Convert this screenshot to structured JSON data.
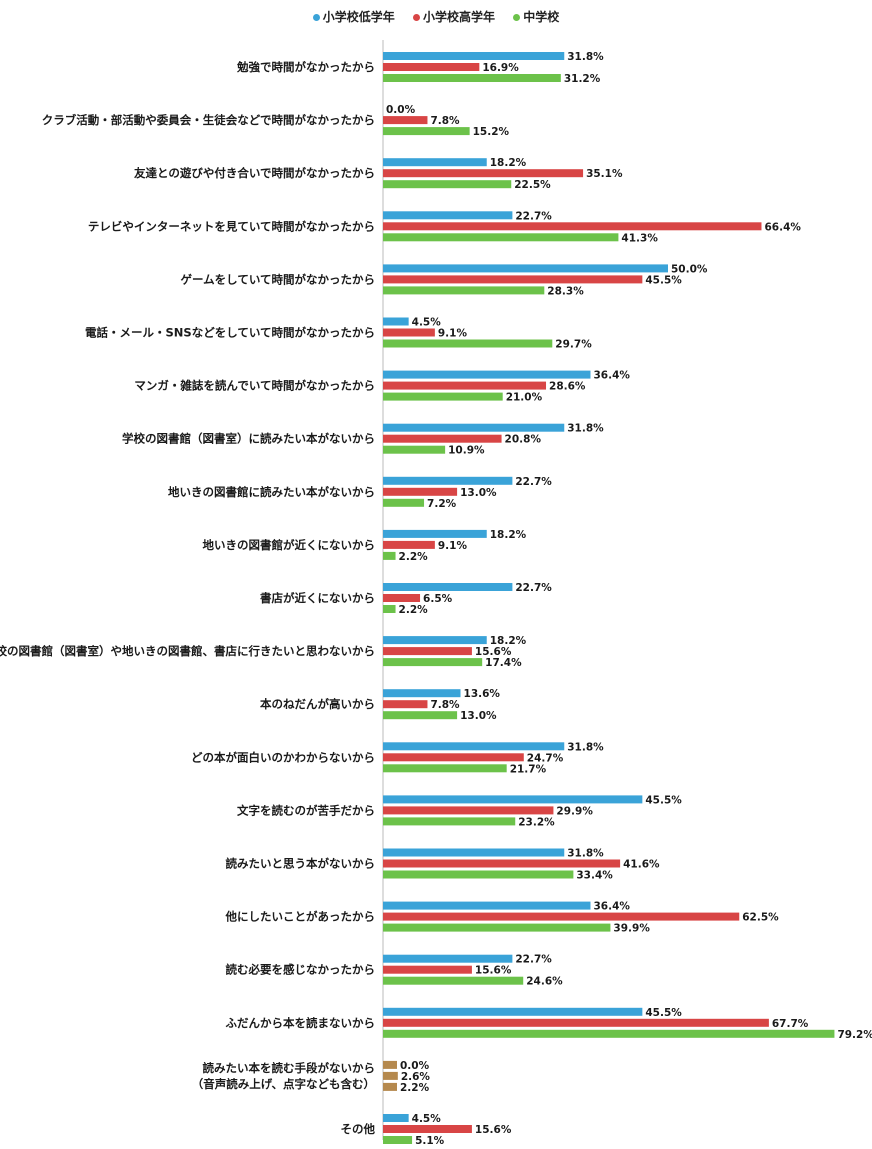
{
  "chart_data": {
    "type": "bar",
    "orientation": "horizontal",
    "legend_position": "top-center",
    "grid": false,
    "xlim": [
      0,
      80
    ],
    "series": [
      {
        "name": "小学校低学年",
        "color": "#3aa3d8",
        "values": [
          31.8,
          0.0,
          18.2,
          22.7,
          50.0,
          4.5,
          36.4,
          31.8,
          22.7,
          18.2,
          22.7,
          18.2,
          13.6,
          31.8,
          45.5,
          31.8,
          36.4,
          22.7,
          45.5,
          0.0,
          4.5
        ],
        "labels": [
          "31.8%",
          "0.0%",
          "18.2%",
          "22.7%",
          "50.0%",
          "4.5%",
          "36.4%",
          "31.8%",
          "22.7%",
          "18.2%",
          "22.7%",
          "18.2%",
          "13.6%",
          "31.8%",
          "45.5%",
          "31.8%",
          "36.4%",
          "22.7%",
          "45.5%",
          "0.0%",
          "4.5%"
        ]
      },
      {
        "name": "小学校高学年",
        "color": "#d84545",
        "values": [
          16.9,
          7.8,
          35.1,
          66.4,
          45.5,
          9.1,
          28.6,
          20.8,
          13.0,
          9.1,
          6.5,
          15.6,
          7.8,
          24.7,
          29.9,
          41.6,
          62.5,
          15.6,
          67.7,
          2.6,
          15.6
        ],
        "labels": [
          "16.9%",
          "7.8%",
          "35.1%",
          "66.4%",
          "45.5%",
          "9.1%",
          "28.6%",
          "20.8%",
          "13.0%",
          "9.1%",
          "6.5%",
          "15.6%",
          "7.8%",
          "24.7%",
          "29.9%",
          "41.6%",
          "62.5%",
          "15.6%",
          "67.7%",
          "2.6%",
          "15.6%"
        ]
      },
      {
        "name": "中学校",
        "color": "#6cc24a",
        "values": [
          31.2,
          15.2,
          22.5,
          41.3,
          28.3,
          29.7,
          21.0,
          10.9,
          7.2,
          2.2,
          2.2,
          17.4,
          13.0,
          21.7,
          23.2,
          33.4,
          39.9,
          24.6,
          79.2,
          2.2,
          5.1
        ],
        "labels": [
          "31.2%",
          "15.2%",
          "22.5%",
          "41.3%",
          "28.3%",
          "29.7%",
          "21.0%",
          "10.9%",
          "7.2%",
          "2.2%",
          "2.2%",
          "17.4%",
          "13.0%",
          "21.7%",
          "23.2%",
          "33.4%",
          "39.9%",
          "24.6%",
          "79.2%",
          "2.2%",
          "5.1%"
        ]
      }
    ],
    "special_color": "#b5894e",
    "special_category_index": 19,
    "categories": [
      [
        "勉強で時間がなかったから"
      ],
      [
        "クラブ活動・部活動や委員会・生徒会などで時間がなかったから"
      ],
      [
        "友達との遊びや付き合いで時間がなかったから"
      ],
      [
        "テレビやインターネットを見ていて時間がなかったから"
      ],
      [
        "ゲームをしていて時間がなかったから"
      ],
      [
        "電話・メール・SNSなどをしていて時間がなかったから"
      ],
      [
        "マンガ・雑誌を読んでいて時間がなかったから"
      ],
      [
        "学校の図書館（図書室）に読みたい本がないから"
      ],
      [
        "地いきの図書館に読みたい本がないから"
      ],
      [
        "地いきの図書館が近くにないから"
      ],
      [
        "書店が近くにないから"
      ],
      [
        "学校の図書館（図書室）や地いきの図書館、書店に行きたいと思わないから"
      ],
      [
        "本のねだんが高いから"
      ],
      [
        "どの本が面白いのかわからないから"
      ],
      [
        "文字を読むのが苦手だから"
      ],
      [
        "読みたいと思う本がないから"
      ],
      [
        "他にしたいことがあったから"
      ],
      [
        "読む必要を感じなかったから"
      ],
      [
        "ふだんから本を読まないから"
      ],
      [
        "読みたい本を読む手段がないから",
        "（音声読み上げ、点字なども含む）"
      ],
      [
        "その他"
      ]
    ]
  }
}
